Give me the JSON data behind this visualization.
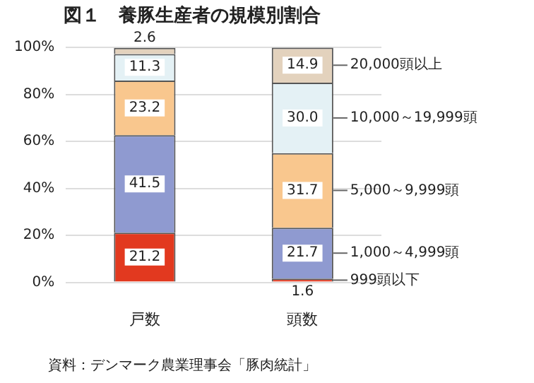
{
  "chart_data": {
    "type": "bar",
    "stacked": true,
    "title": "図１　養豚生産者の規模別割合",
    "categories": [
      "戸数",
      "頭数"
    ],
    "series": [
      {
        "name": "999頭以下",
        "color": "#e2391f",
        "values": [
          21.2,
          1.6
        ],
        "value_labels": [
          "21.2",
          "1.6"
        ]
      },
      {
        "name": "1,000～4,999頭",
        "color": "#8f9ad0",
        "values": [
          41.5,
          21.7
        ],
        "value_labels": [
          "41.5",
          "21.7"
        ]
      },
      {
        "name": "5,000～9,999頭",
        "color": "#f9c78e",
        "values": [
          23.2,
          31.7
        ],
        "value_labels": [
          "23.2",
          "31.7"
        ]
      },
      {
        "name": "10,000～19,999頭",
        "color": "#e4f1f5",
        "values": [
          11.3,
          30.0
        ],
        "value_labels": [
          "11.3",
          "30.0"
        ]
      },
      {
        "name": "20,000頭以上",
        "color": "#e3d2bd",
        "values": [
          2.6,
          14.9
        ],
        "value_labels": [
          "2.6",
          "14.9"
        ]
      }
    ],
    "ylim": [
      0,
      100
    ],
    "yticks": [
      {
        "value": 0,
        "label": "0%"
      },
      {
        "value": 20,
        "label": "20%"
      },
      {
        "value": 40,
        "label": "40%"
      },
      {
        "value": 60,
        "label": "60%"
      },
      {
        "value": 80,
        "label": "80%"
      },
      {
        "value": 100,
        "label": "100%"
      }
    ],
    "grid": "y",
    "legend": false,
    "annotations": [
      "資料：デンマーク農業理事会「豚肉統計」"
    ]
  }
}
